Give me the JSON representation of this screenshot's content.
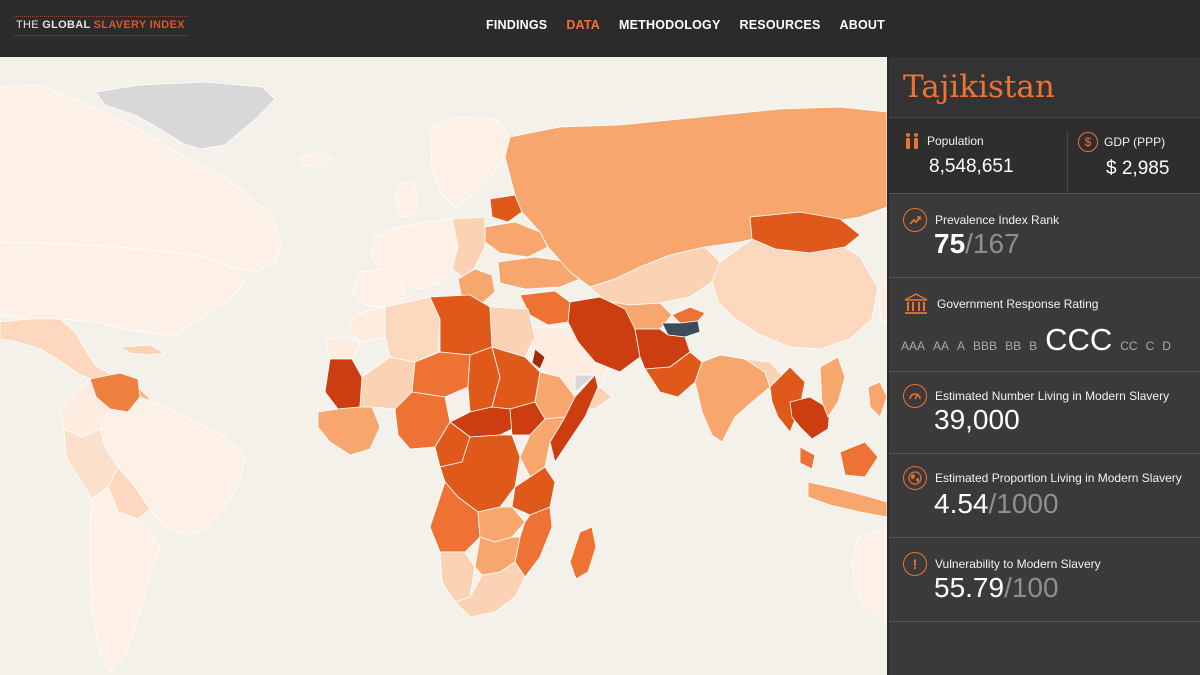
{
  "header": {
    "logo_the": "THE ",
    "logo_global": "GLOBAL ",
    "logo_slavery": "SLAVERY ",
    "logo_index": "INDEX",
    "nav": [
      "FINDINGS",
      "DATA",
      "METHODOLOGY",
      "RESOURCES",
      "ABOUT"
    ],
    "active_nav": "DATA"
  },
  "colors": {
    "accent": "#ee7233",
    "scale": [
      "#fdece0",
      "#fbd3b4",
      "#f7a66e",
      "#ee7233",
      "#df5a1a",
      "#cc3d10",
      "#a12a08"
    ],
    "selected_country": "#3e4b5a"
  },
  "panel": {
    "country": "Tajikistan",
    "population_label": "Population",
    "population_value": "8,548,651",
    "gdp_label": "GDP (PPP)",
    "gdp_value": "$ 2,985",
    "rank_label": "Prevalence Index Rank",
    "rank_value": "75",
    "rank_total": "/167",
    "govt_label": "Government Response Rating",
    "ratings": [
      "AAA",
      "AA",
      "A",
      "BBB",
      "BB",
      "B",
      "CCC",
      "CC",
      "C",
      "D"
    ],
    "selected_rating": "CCC",
    "est_number_label": "Estimated Number Living in Modern Slavery",
    "est_number_value": "39,000",
    "est_prop_label": "Estimated Proportion Living in Modern Slavery",
    "est_prop_value": "4.54",
    "est_prop_total": "/1000",
    "vuln_label": "Vulnerability to Modern Slavery",
    "vuln_value": "55.79",
    "vuln_total": "/100"
  },
  "icons": {
    "population": "people-icon",
    "gdp": "dollar-icon",
    "rank": "trend-up-icon",
    "govt": "government-building-icon",
    "est_number": "gauge-icon",
    "est_prop": "globe-icon",
    "vuln": "exclamation-icon"
  }
}
